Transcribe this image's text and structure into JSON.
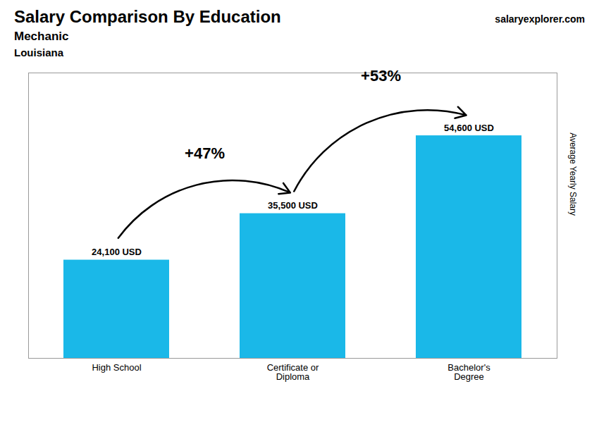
{
  "chart_data": {
    "type": "bar",
    "title": "Salary Comparison By Education",
    "subtitle": [
      "Mechanic",
      "Louisiana"
    ],
    "source": "salaryexplorer.com",
    "ylabel": "Average Yearly Salary",
    "categories": [
      "High School",
      "Certificate or\nDiploma",
      "Bachelor's\nDegree"
    ],
    "values": [
      24100,
      35500,
      54600
    ],
    "value_labels": [
      "24,100 USD",
      "35,500 USD",
      "54,600 USD"
    ],
    "data_labels": true,
    "color": "#1ab8e8",
    "ylim": [
      0,
      70000
    ],
    "grid": false,
    "tick_labels": "x",
    "annotations": [
      {
        "text": "+47%",
        "from": "High School",
        "to": "Certificate or\nDiploma"
      },
      {
        "text": "+53%",
        "from": "Certificate or\nDiploma",
        "to": "Bachelor's\nDegree"
      }
    ]
  }
}
